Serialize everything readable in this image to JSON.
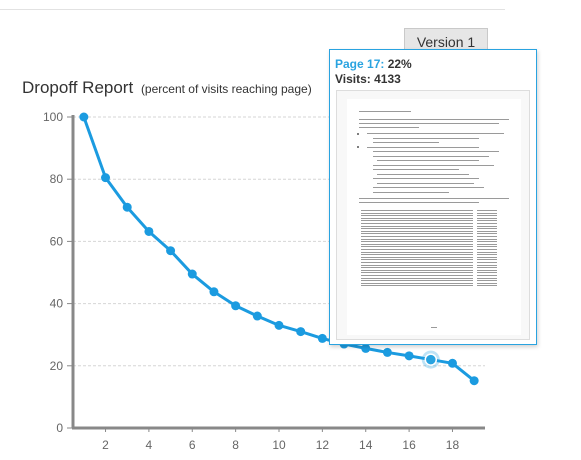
{
  "toolbar": {
    "version_label": "Version 1"
  },
  "header": {
    "title": "Dropoff Report",
    "subtitle": "(percent of visits reaching page)"
  },
  "tooltip": {
    "page_label": "Page 17:",
    "percent": "22%",
    "visits_label": "Visits: 4133",
    "thumbnail": "document-page-thumbnail"
  },
  "colors": {
    "series": "#1b9be0",
    "highlight": "#29a3e0",
    "axis": "#888888",
    "grid": "#d6d6d6"
  },
  "chart_data": {
    "type": "line",
    "title": "Dropoff Report",
    "subtitle": "(percent of visits reaching page)",
    "xlabel": "",
    "ylabel": "",
    "x": [
      1,
      2,
      3,
      4,
      5,
      6,
      7,
      8,
      9,
      10,
      11,
      12,
      13,
      14,
      15,
      16,
      17,
      18,
      19
    ],
    "series": [
      {
        "values": [
          100,
          80.5,
          71,
          63.2,
          57,
          49.5,
          43.8,
          39.3,
          36,
          33,
          31,
          28.8,
          27,
          25.6,
          24.3,
          23.2,
          22,
          20.8,
          15.2
        ]
      }
    ],
    "xlim": [
      0.5,
      19.5
    ],
    "ylim": [
      0,
      100
    ],
    "x_ticks": [
      2,
      4,
      6,
      8,
      10,
      12,
      14,
      16,
      18
    ],
    "y_ticks": [
      0,
      20,
      40,
      60,
      80,
      100
    ],
    "grid": "horizontal",
    "legend": "none",
    "highlighted_point": {
      "x": 17,
      "y": 22
    }
  }
}
